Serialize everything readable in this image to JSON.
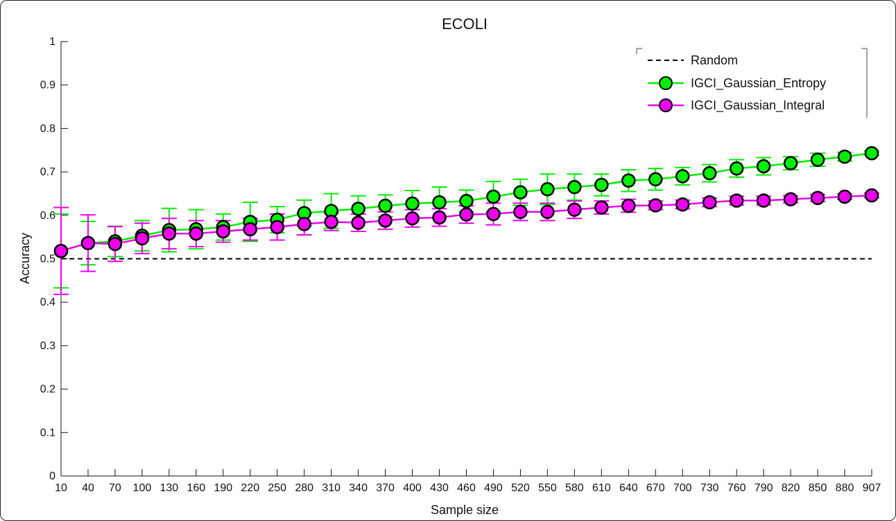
{
  "chart_data": {
    "type": "line",
    "title": "ECOLI",
    "xlabel": "Sample size",
    "ylabel": "Accuracy",
    "ylim": [
      0,
      1
    ],
    "yticks": [
      "0",
      "0.1",
      "0.2",
      "0.3",
      "0.4",
      "0.5",
      "0.6",
      "0.7",
      "0.8",
      "0.9",
      "1"
    ],
    "x": [
      10,
      40,
      70,
      100,
      130,
      160,
      190,
      220,
      250,
      280,
      310,
      340,
      370,
      400,
      430,
      460,
      490,
      520,
      550,
      580,
      610,
      640,
      670,
      700,
      730,
      760,
      790,
      820,
      850,
      880,
      907
    ],
    "legend_position": "top-right",
    "grid": false,
    "series": [
      {
        "name": "Random",
        "style": "dashed",
        "color": "#000000",
        "values": [
          0.5,
          0.5,
          0.5,
          0.5,
          0.5,
          0.5,
          0.5,
          0.5,
          0.5,
          0.5,
          0.5,
          0.5,
          0.5,
          0.5,
          0.5,
          0.5,
          0.5,
          0.5,
          0.5,
          0.5,
          0.5,
          0.5,
          0.5,
          0.5,
          0.5,
          0.5,
          0.5,
          0.5,
          0.5,
          0.5,
          0.5
        ]
      },
      {
        "name": "IGCI_Gaussian_Entropy",
        "style": "line-marker",
        "color": "#00ee00",
        "values": [
          0.518,
          0.536,
          0.54,
          0.553,
          0.566,
          0.568,
          0.573,
          0.585,
          0.59,
          0.605,
          0.61,
          0.615,
          0.622,
          0.627,
          0.63,
          0.633,
          0.643,
          0.653,
          0.66,
          0.665,
          0.67,
          0.68,
          0.683,
          0.69,
          0.697,
          0.708,
          0.713,
          0.72,
          0.728,
          0.735,
          0.743
        ],
        "error": [
          0.085,
          0.05,
          0.035,
          0.035,
          0.05,
          0.045,
          0.03,
          0.045,
          0.03,
          0.03,
          0.04,
          0.03,
          0.025,
          0.03,
          0.035,
          0.025,
          0.035,
          0.03,
          0.035,
          0.03,
          0.025,
          0.025,
          0.025,
          0.02,
          0.02,
          0.02,
          0.02,
          0.015,
          0.015,
          0.01,
          0.005
        ]
      },
      {
        "name": "IGCI_Gaussian_Integral",
        "style": "line-marker",
        "color": "#ee00ee",
        "values": [
          0.518,
          0.536,
          0.534,
          0.547,
          0.558,
          0.558,
          0.563,
          0.568,
          0.573,
          0.58,
          0.585,
          0.583,
          0.588,
          0.593,
          0.595,
          0.602,
          0.603,
          0.608,
          0.608,
          0.613,
          0.618,
          0.622,
          0.623,
          0.625,
          0.63,
          0.634,
          0.634,
          0.637,
          0.64,
          0.643,
          0.646
        ],
        "error": [
          0.1,
          0.065,
          0.04,
          0.035,
          0.035,
          0.03,
          0.025,
          0.025,
          0.03,
          0.025,
          0.02,
          0.02,
          0.02,
          0.02,
          0.02,
          0.02,
          0.025,
          0.02,
          0.02,
          0.02,
          0.015,
          0.015,
          0.01,
          0.01,
          0.01,
          0.01,
          0.01,
          0.008,
          0.008,
          0.006,
          0.005
        ]
      }
    ]
  }
}
